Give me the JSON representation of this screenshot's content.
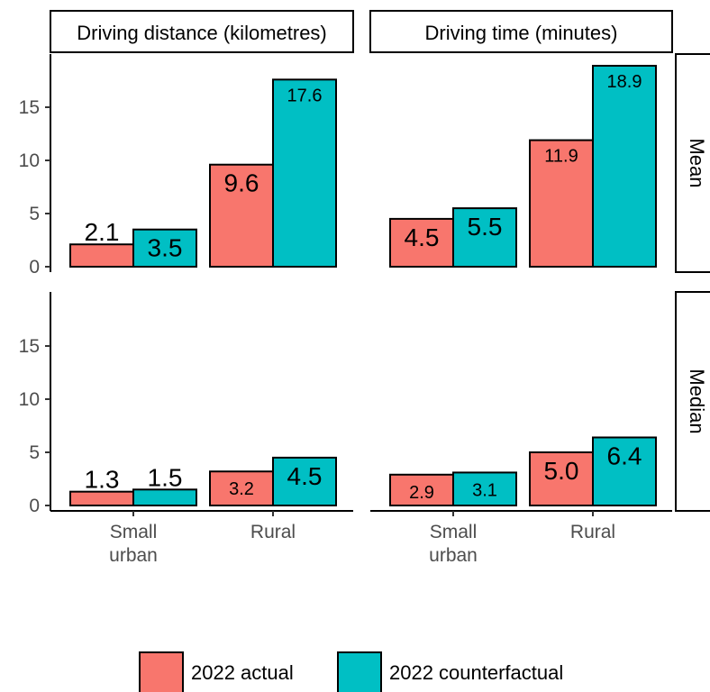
{
  "chart_data": {
    "type": "bar",
    "facet_columns": [
      "Driving distance (kilometres)",
      "Driving time (minutes)"
    ],
    "facet_rows": [
      "Mean",
      "Median"
    ],
    "categories": [
      "Small urban",
      "Rural"
    ],
    "category_lines": [
      [
        "Small",
        "urban"
      ],
      [
        "Rural"
      ]
    ],
    "series": [
      {
        "name": "2022 actual",
        "color": "#F8766D"
      },
      {
        "name": "2022 counterfactual",
        "color": "#00BFC4"
      }
    ],
    "panels": [
      {
        "row": "Mean",
        "col": "Driving distance (kilometres)",
        "values": {
          "2022 actual": [
            2.1,
            9.6
          ],
          "2022 counterfactual": [
            3.5,
            17.6
          ]
        },
        "labels": {
          "2022 actual": [
            "2.1",
            "9.6"
          ],
          "2022 counterfactual": [
            "3.5",
            "17.6"
          ]
        }
      },
      {
        "row": "Mean",
        "col": "Driving time (minutes)",
        "values": {
          "2022 actual": [
            4.5,
            11.9
          ],
          "2022 counterfactual": [
            5.5,
            18.9
          ]
        },
        "labels": {
          "2022 actual": [
            "4.5",
            "11.9"
          ],
          "2022 counterfactual": [
            "5.5",
            "18.9"
          ]
        }
      },
      {
        "row": "Median",
        "col": "Driving distance (kilometres)",
        "values": {
          "2022 actual": [
            1.3,
            3.2
          ],
          "2022 counterfactual": [
            1.5,
            4.5
          ]
        },
        "labels": {
          "2022 actual": [
            "1.3",
            "3.2"
          ],
          "2022 counterfactual": [
            "1.5",
            "4.5"
          ]
        }
      },
      {
        "row": "Median",
        "col": "Driving time (minutes)",
        "values": {
          "2022 actual": [
            2.9,
            5.0
          ],
          "2022 counterfactual": [
            3.1,
            6.4
          ]
        },
        "labels": {
          "2022 actual": [
            "2.9",
            "5.0"
          ],
          "2022 counterfactual": [
            "3.1",
            "6.4"
          ]
        }
      }
    ],
    "y_ticks": [
      0,
      5,
      10,
      15
    ],
    "ylim": [
      0,
      19.5
    ],
    "grid": false,
    "legend_position": "bottom"
  }
}
